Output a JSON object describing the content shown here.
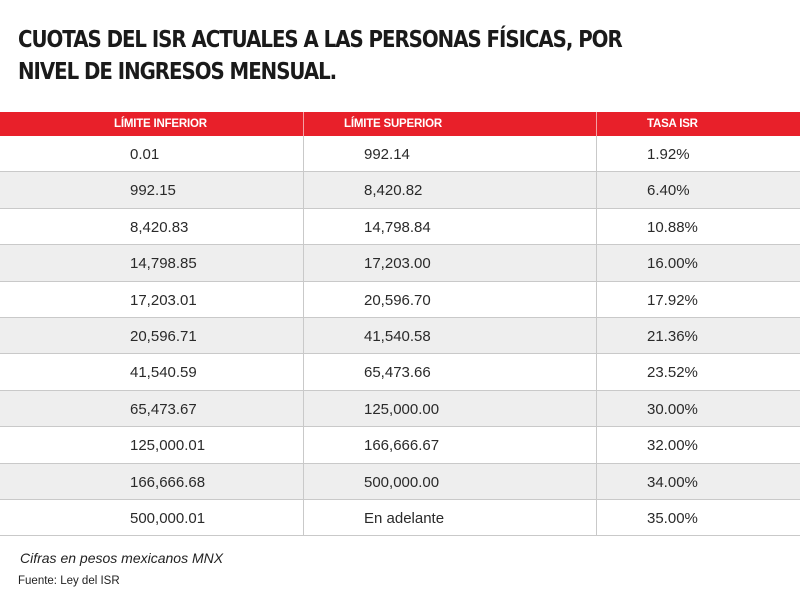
{
  "chart_data": {
    "type": "table",
    "title": "CUOTAS DEL ISR ACTUALES A LAS PERSONAS FÍSICAS, POR NIVEL DE INGRESOS MENSUAL.",
    "columns": [
      "LÍMITE INFERIOR",
      "LÍMITE SUPERIOR",
      "TASA ISR"
    ],
    "rows": [
      [
        "0.01",
        "992.14",
        "1.92%"
      ],
      [
        "992.15",
        "8,420.82",
        "6.40%"
      ],
      [
        "8,420.83",
        "14,798.84",
        "10.88%"
      ],
      [
        "14,798.85",
        "17,203.00",
        "16.00%"
      ],
      [
        "17,203.01",
        "20,596.70",
        "17.92%"
      ],
      [
        "20,596.71",
        "41,540.58",
        "21.36%"
      ],
      [
        "41,540.59",
        "65,473.66",
        "23.52%"
      ],
      [
        "65,473.67",
        "125,000.00",
        "30.00%"
      ],
      [
        "125,000.01",
        "166,666.67",
        "32.00%"
      ],
      [
        "166,666.68",
        "500,000.00",
        "34.00%"
      ],
      [
        "500,000.01",
        "En adelante",
        "35.00%"
      ]
    ],
    "header_color": "#e8202a",
    "stripe_color": "#eeeeee"
  },
  "footer": {
    "note": "Cifras en pesos mexicanos MNX",
    "source": "Fuente: Ley del ISR"
  }
}
